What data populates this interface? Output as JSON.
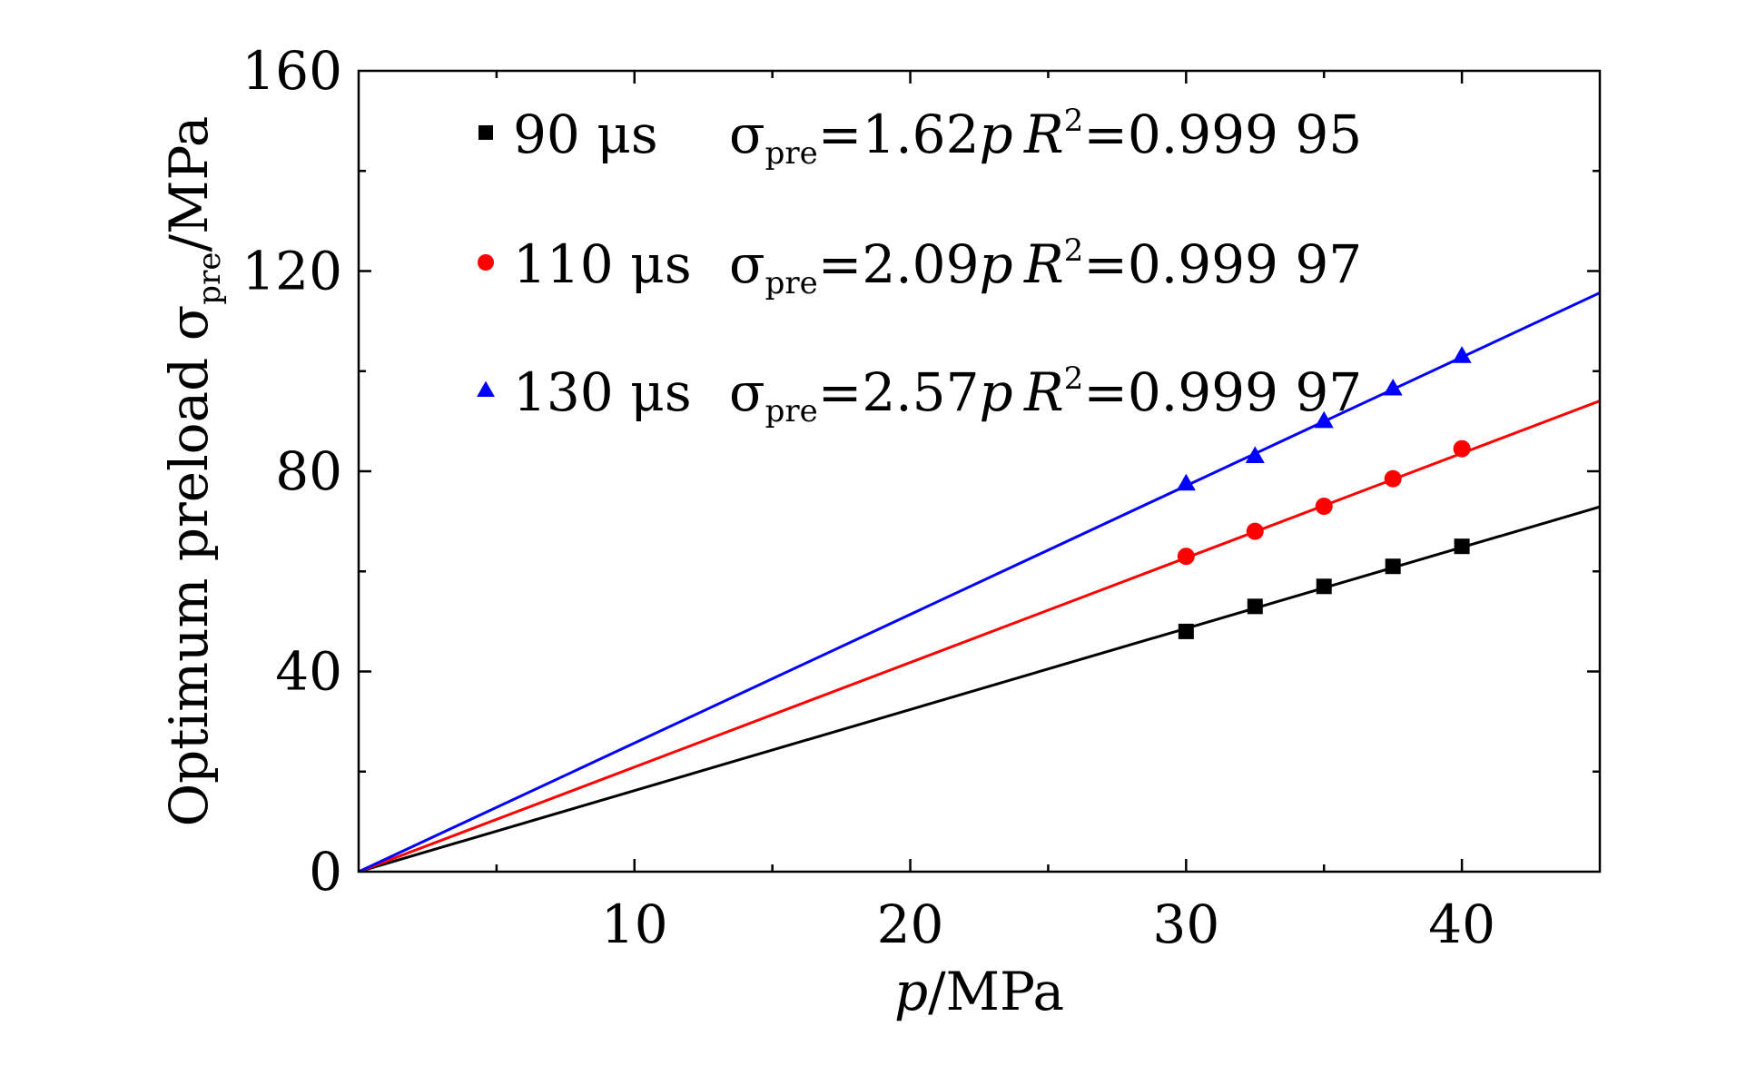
{
  "chart_data": {
    "type": "scatter",
    "title": "",
    "xlabel": {
      "var": "p",
      "unit": "/MPa"
    },
    "ylabel": {
      "main": "Optimum preload σ",
      "sub": "pre",
      "unit": "/MPa"
    },
    "xlim": [
      0,
      45
    ],
    "ylim": [
      0,
      160
    ],
    "x_ticks": [
      10,
      20,
      30,
      40
    ],
    "y_ticks": [
      0,
      40,
      80,
      120,
      160
    ],
    "grid": false,
    "legend_position": "top-left",
    "series": [
      {
        "name": "90 μs",
        "marker": "square",
        "color": "#000000",
        "x": [
          30,
          32.5,
          35,
          37.5,
          40
        ],
        "y": [
          48,
          53,
          57,
          61,
          65
        ],
        "fit": {
          "slope": 1.62,
          "label_sigma": "σ",
          "label_sub": "pre",
          "label_eq": "=1.62",
          "label_var": "p",
          "r_label": "R",
          "r_sup": "2",
          "r_value": "=0.999 95"
        }
      },
      {
        "name": "110 μs",
        "marker": "circle",
        "color": "#ff0000",
        "x": [
          30,
          32.5,
          35,
          37.5,
          40
        ],
        "y": [
          63,
          68,
          73,
          78.5,
          84.5
        ],
        "fit": {
          "slope": 2.09,
          "label_sigma": "σ",
          "label_sub": "pre",
          "label_eq": "=2.09",
          "label_var": "p",
          "r_label": "R",
          "r_sup": "2",
          "r_value": "=0.999 97"
        }
      },
      {
        "name": "130 μs",
        "marker": "triangle",
        "color": "#0000ff",
        "x": [
          30,
          32.5,
          35,
          37.5,
          40
        ],
        "y": [
          77.5,
          83,
          90,
          96.5,
          103
        ],
        "fit": {
          "slope": 2.57,
          "label_sigma": "σ",
          "label_sub": "pre",
          "label_eq": "=2.57",
          "label_var": "p",
          "r_label": "R",
          "r_sup": "2",
          "r_value": "=0.999 97"
        }
      }
    ]
  }
}
